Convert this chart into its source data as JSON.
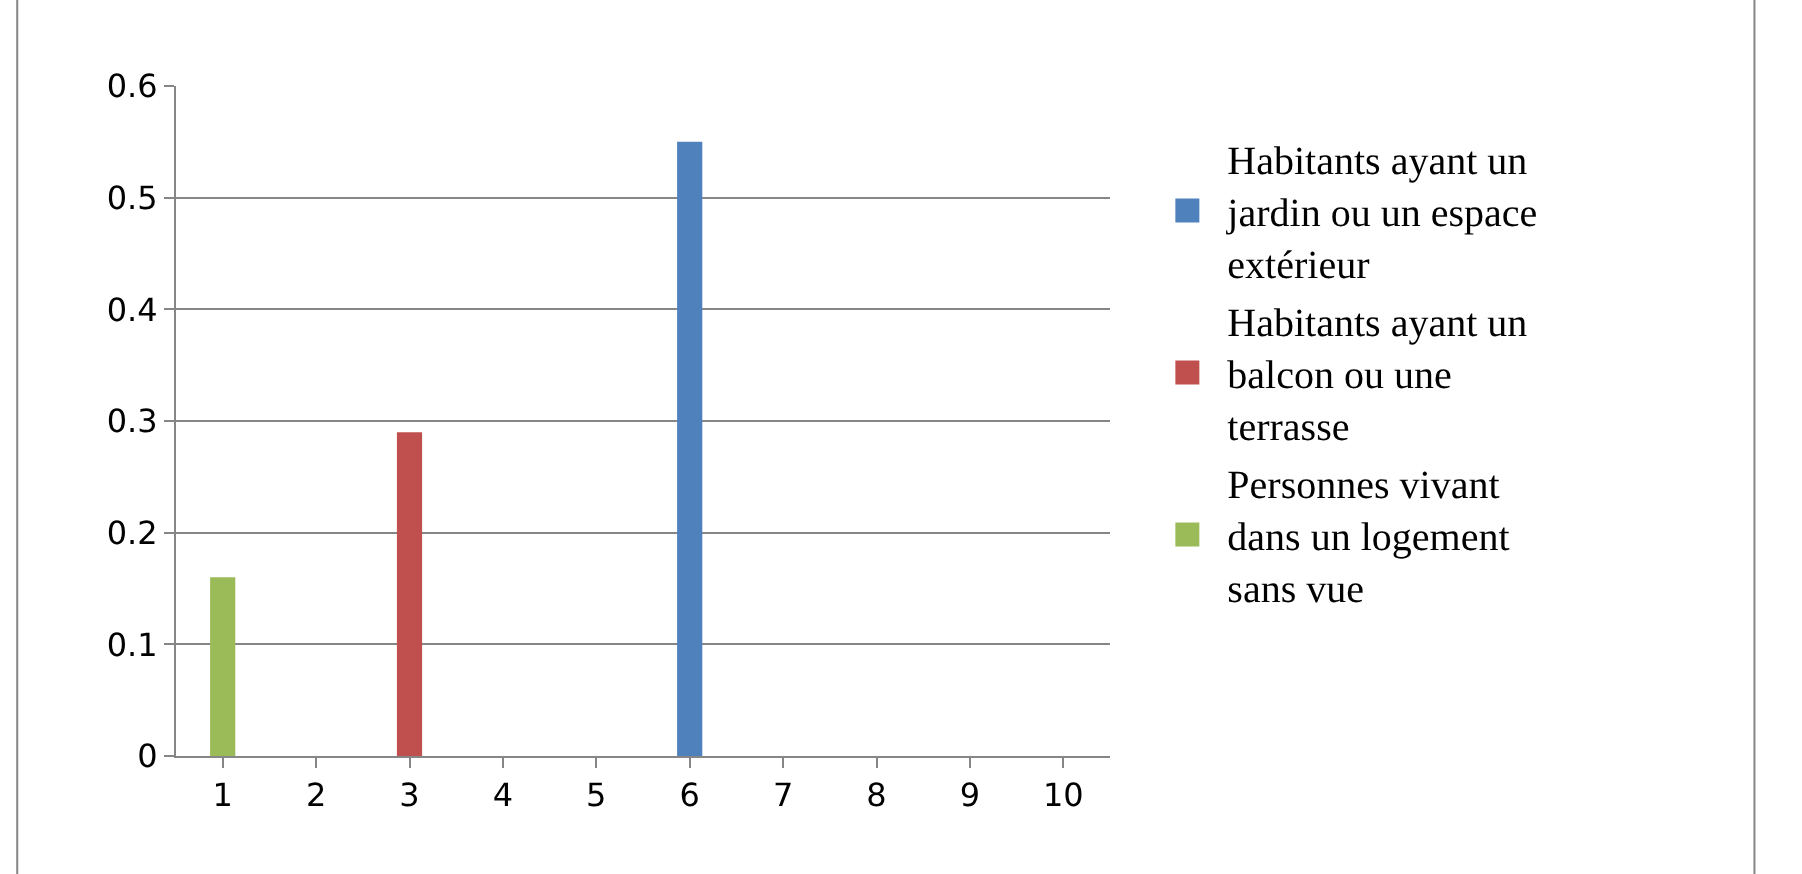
{
  "chart_data": {
    "type": "bar",
    "categories": [
      "1",
      "2",
      "3",
      "4",
      "5",
      "6",
      "7",
      "8",
      "9",
      "10"
    ],
    "series": [
      {
        "name": "Habitants ayant un jardin ou un espace extérieur",
        "color": "#4f81bd",
        "values": [
          null,
          null,
          null,
          null,
          null,
          0.55,
          null,
          null,
          null,
          null
        ]
      },
      {
        "name": "Habitants ayant un balcon ou une terrasse",
        "color": "#c0504d",
        "values": [
          null,
          null,
          0.29,
          null,
          null,
          null,
          null,
          null,
          null,
          null
        ]
      },
      {
        "name": "Personnes vivant dans un logement sans vue",
        "color": "#9bbb59",
        "values": [
          0.16,
          null,
          null,
          null,
          null,
          null,
          null,
          null,
          null,
          null
        ]
      }
    ],
    "ylim": [
      0,
      0.6
    ],
    "yticks": [
      0,
      0.1,
      0.2,
      0.3,
      0.4,
      0.5,
      0.6
    ],
    "grid": "y",
    "legend": "right"
  }
}
